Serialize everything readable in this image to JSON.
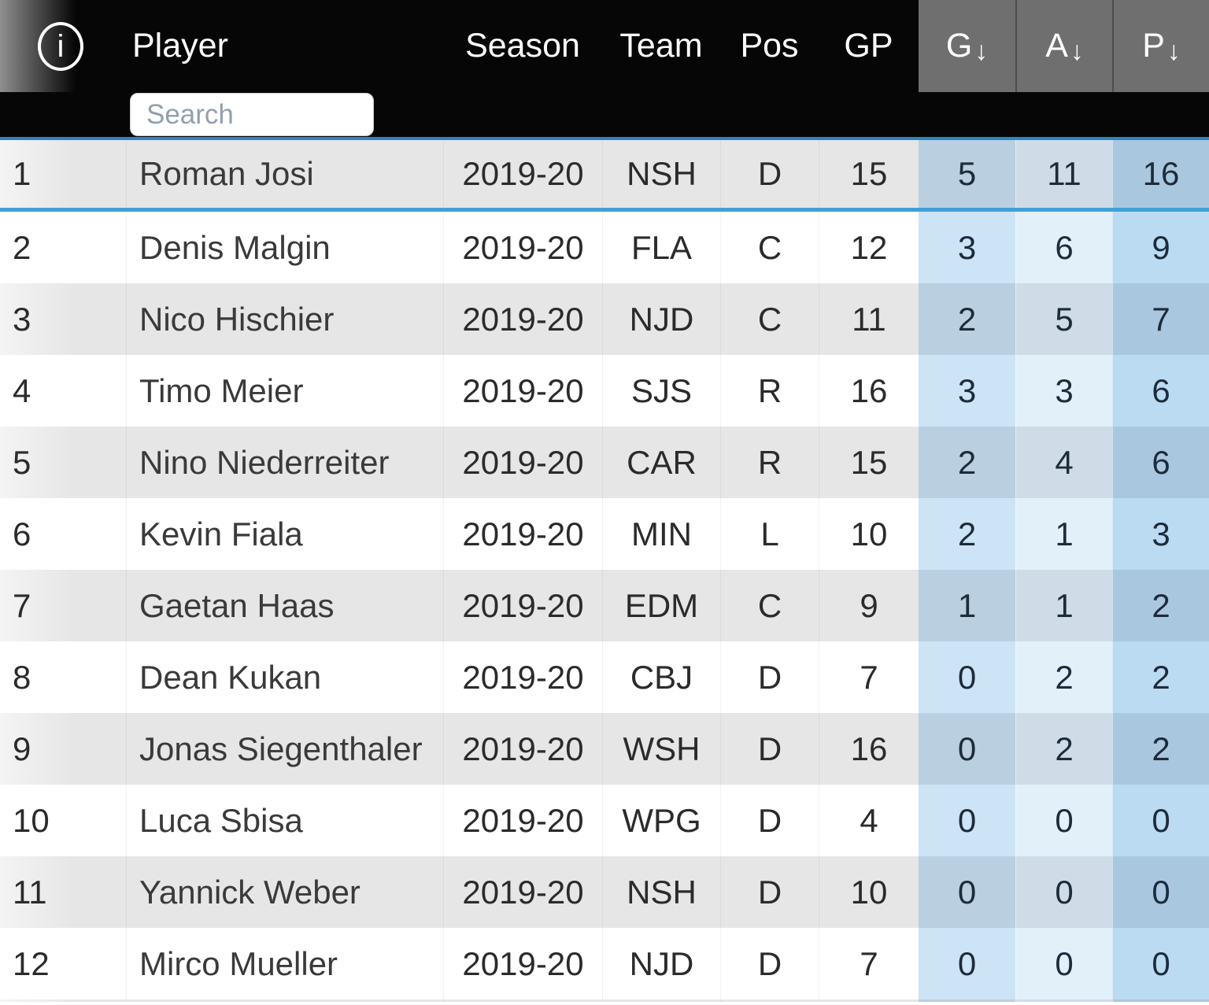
{
  "table": {
    "info_icon": "i",
    "search_placeholder": "Search",
    "sort_arrow": "↓",
    "columns": [
      {
        "key": "rank",
        "label": "",
        "sorted": false
      },
      {
        "key": "player",
        "label": "Player",
        "sorted": false
      },
      {
        "key": "season",
        "label": "Season",
        "sorted": false
      },
      {
        "key": "team",
        "label": "Team",
        "sorted": false
      },
      {
        "key": "pos",
        "label": "Pos",
        "sorted": false
      },
      {
        "key": "gp",
        "label": "GP",
        "sorted": false
      },
      {
        "key": "g",
        "label": "G",
        "sorted": true
      },
      {
        "key": "a",
        "label": "A",
        "sorted": true
      },
      {
        "key": "p",
        "label": "P",
        "sorted": true
      }
    ],
    "rows": [
      {
        "rank": "1",
        "player": "Roman Josi",
        "season": "2019-20",
        "team": "NSH",
        "pos": "D",
        "gp": "15",
        "g": "5",
        "a": "11",
        "p": "16"
      },
      {
        "rank": "2",
        "player": "Denis Malgin",
        "season": "2019-20",
        "team": "FLA",
        "pos": "C",
        "gp": "12",
        "g": "3",
        "a": "6",
        "p": "9"
      },
      {
        "rank": "3",
        "player": "Nico Hischier",
        "season": "2019-20",
        "team": "NJD",
        "pos": "C",
        "gp": "11",
        "g": "2",
        "a": "5",
        "p": "7"
      },
      {
        "rank": "4",
        "player": "Timo Meier",
        "season": "2019-20",
        "team": "SJS",
        "pos": "R",
        "gp": "16",
        "g": "3",
        "a": "3",
        "p": "6"
      },
      {
        "rank": "5",
        "player": "Nino Niederreiter",
        "season": "2019-20",
        "team": "CAR",
        "pos": "R",
        "gp": "15",
        "g": "2",
        "a": "4",
        "p": "6"
      },
      {
        "rank": "6",
        "player": "Kevin Fiala",
        "season": "2019-20",
        "team": "MIN",
        "pos": "L",
        "gp": "10",
        "g": "2",
        "a": "1",
        "p": "3"
      },
      {
        "rank": "7",
        "player": "Gaetan Haas",
        "season": "2019-20",
        "team": "EDM",
        "pos": "C",
        "gp": "9",
        "g": "1",
        "a": "1",
        "p": "2"
      },
      {
        "rank": "8",
        "player": "Dean Kukan",
        "season": "2019-20",
        "team": "CBJ",
        "pos": "D",
        "gp": "7",
        "g": "0",
        "a": "2",
        "p": "2"
      },
      {
        "rank": "9",
        "player": "Jonas Siegenthaler",
        "season": "2019-20",
        "team": "WSH",
        "pos": "D",
        "gp": "16",
        "g": "0",
        "a": "2",
        "p": "2"
      },
      {
        "rank": "10",
        "player": "Luca Sbisa",
        "season": "2019-20",
        "team": "WPG",
        "pos": "D",
        "gp": "4",
        "g": "0",
        "a": "0",
        "p": "0"
      },
      {
        "rank": "11",
        "player": "Yannick Weber",
        "season": "2019-20",
        "team": "NSH",
        "pos": "D",
        "gp": "10",
        "g": "0",
        "a": "0",
        "p": "0"
      },
      {
        "rank": "12",
        "player": "Mirco Mueller",
        "season": "2019-20",
        "team": "NJD",
        "pos": "D",
        "gp": "7",
        "g": "0",
        "a": "0",
        "p": "0"
      }
    ]
  },
  "colors": {
    "header_bg": "#060606",
    "header_text": "#ffffff",
    "sorted_header_bg": "#6f6f6f",
    "header_rule_blue": "#2b85c2",
    "first_row_underline_blue": "#41a0d8",
    "row_odd_bg": "#e6e6e6",
    "row_even_bg": "#ffffff",
    "g_tint_odd": "#bacfe0",
    "a_tint_odd": "#cfdce7",
    "p_tint_odd": "#a9c8e0",
    "g_tint_even": "#cde4f6",
    "a_tint_even": "#e2f0fa",
    "p_tint_even": "#bbdbf3"
  }
}
